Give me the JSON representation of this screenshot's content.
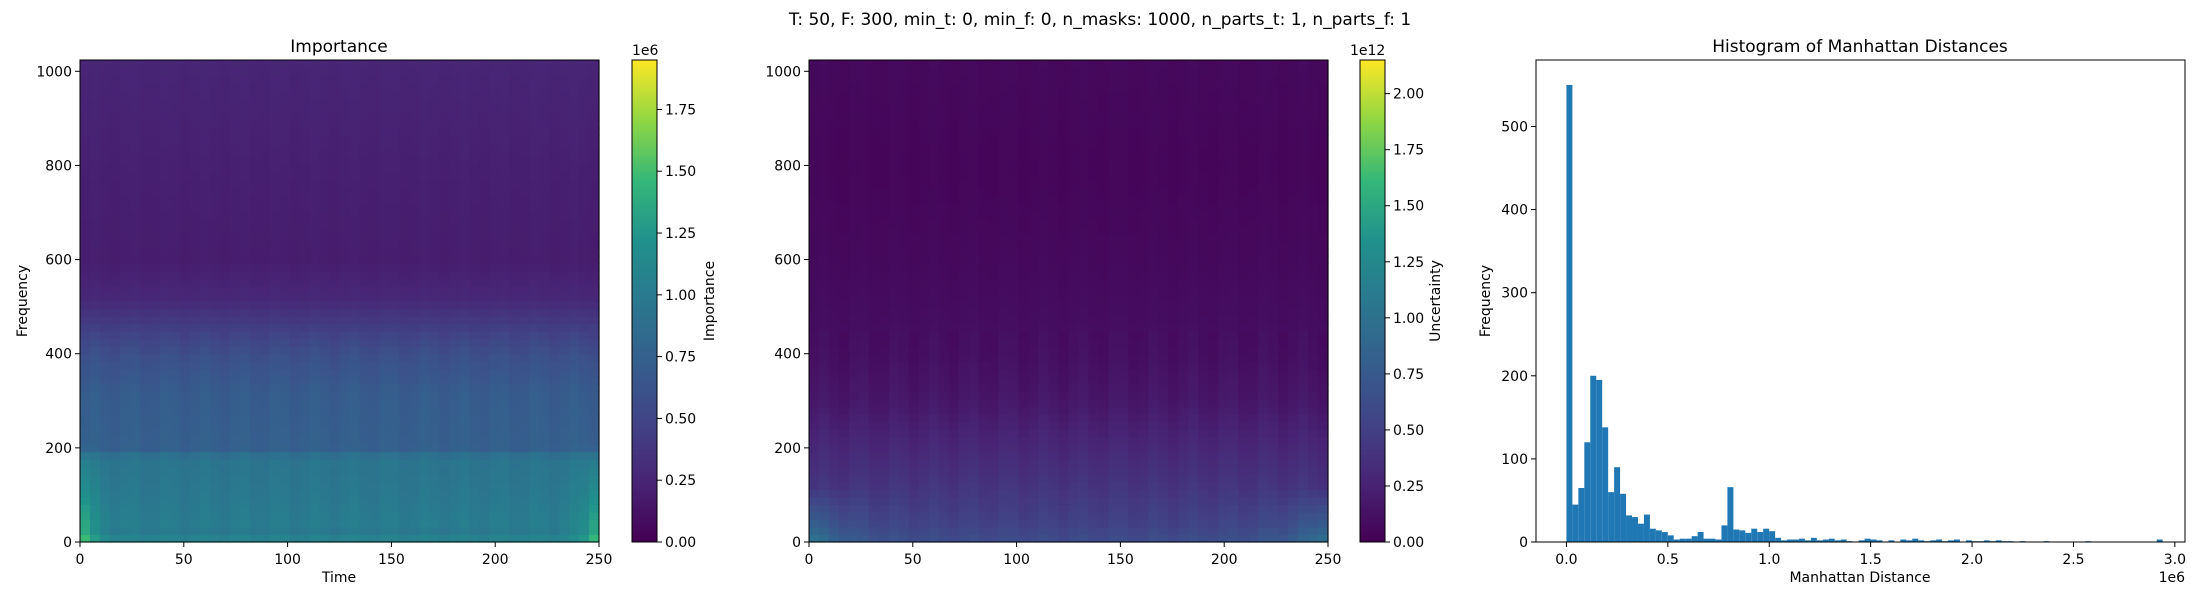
{
  "suptitle": "T: 50, F: 300, min_t: 0, min_f: 0, n_masks: 1000, n_parts_t: 1, n_parts_f: 1",
  "chart_data": [
    {
      "type": "heatmap",
      "title": "Importance",
      "xlabel": "Time",
      "ylabel": "Frequency",
      "xlim": [
        0,
        250
      ],
      "ylim": [
        0,
        1024
      ],
      "xticks": [
        "0",
        "50",
        "100",
        "150",
        "200",
        "250"
      ],
      "yticks": [
        "0",
        "200",
        "400",
        "600",
        "800",
        "1000"
      ],
      "colormap": "viridis",
      "colorbar": {
        "label": "Importance",
        "range": [
          0,
          1.95
        ],
        "multiplier": "1e6",
        "ticks": [
          "0.00",
          "0.25",
          "0.50",
          "0.75",
          "1.00",
          "1.25",
          "1.50",
          "1.75"
        ]
      },
      "profile": {
        "frequency_levels": [
          [
            0,
            0.65
          ],
          [
            8,
            0.55
          ],
          [
            15,
            0.5
          ],
          [
            40,
            0.52
          ],
          [
            100,
            0.5
          ],
          [
            180,
            0.48
          ],
          [
            200,
            0.38
          ],
          [
            320,
            0.36
          ],
          [
            400,
            0.3
          ],
          [
            460,
            0.22
          ],
          [
            520,
            0.14
          ],
          [
            600,
            0.1
          ],
          [
            800,
            0.11
          ],
          [
            1024,
            0.13
          ]
        ],
        "time_edge_boost": 0.32,
        "time_edge_width": 6,
        "low_frequency_extent": 220
      }
    },
    {
      "type": "heatmap",
      "title": "",
      "xlabel": "",
      "ylabel": "",
      "xlim": [
        0,
        250
      ],
      "ylim": [
        0,
        1024
      ],
      "xticks": [
        "0",
        "50",
        "100",
        "150",
        "200",
        "250"
      ],
      "yticks": [
        "0",
        "200",
        "400",
        "600",
        "800",
        "1000"
      ],
      "colormap": "viridis",
      "colorbar": {
        "label": "Uncertainty",
        "range": [
          0,
          2.15
        ],
        "multiplier": "1e12",
        "ticks": [
          "0.00",
          "0.25",
          "0.50",
          "0.75",
          "1.00",
          "1.25",
          "1.50",
          "1.75",
          "2.00"
        ]
      },
      "profile": {
        "frequency_levels": [
          [
            0,
            0.1
          ],
          [
            8,
            0.28
          ],
          [
            40,
            0.24
          ],
          [
            100,
            0.2
          ],
          [
            200,
            0.14
          ],
          [
            300,
            0.08
          ],
          [
            400,
            0.05
          ],
          [
            600,
            0.03
          ],
          [
            800,
            0.02
          ],
          [
            1024,
            0.03
          ]
        ],
        "time_edge_boost": 0.22,
        "time_edge_width": 18,
        "low_frequency_extent": 120
      }
    },
    {
      "type": "bar",
      "title": "Histogram of Manhattan Distances",
      "xlabel": "Manhattan Distance",
      "ylabel": "Frequency",
      "x_multiplier": "1e6",
      "xlim": [
        -0.15,
        3.05
      ],
      "ylim": [
        0,
        580
      ],
      "xticks": [
        "0.0",
        "0.5",
        "1.0",
        "1.5",
        "2.0",
        "2.5",
        "3.0"
      ],
      "yticks": [
        "0",
        "100",
        "200",
        "300",
        "400",
        "500"
      ],
      "bin_start": 0.0,
      "bin_width": 0.0294,
      "color": "#1f77b4",
      "values": [
        550,
        45,
        65,
        120,
        200,
        195,
        138,
        60,
        90,
        58,
        32,
        30,
        22,
        33,
        16,
        14,
        12,
        8,
        3,
        4,
        4,
        7,
        12,
        4,
        4,
        3,
        20,
        66,
        15,
        14,
        11,
        16,
        12,
        16,
        13,
        5,
        2,
        3,
        3,
        4,
        2,
        5,
        2,
        3,
        4,
        2,
        3,
        1,
        0,
        2,
        4,
        3,
        2,
        0,
        2,
        0,
        3,
        2,
        4,
        2,
        1,
        2,
        3,
        1,
        2,
        3,
        0,
        2,
        1,
        1,
        2,
        1,
        2,
        1,
        1,
        0,
        1,
        0,
        0,
        0,
        1,
        0,
        0,
        0,
        0,
        0,
        0,
        1,
        0,
        0,
        0,
        0,
        0,
        0,
        0,
        0,
        0,
        0,
        0,
        3
      ]
    }
  ]
}
